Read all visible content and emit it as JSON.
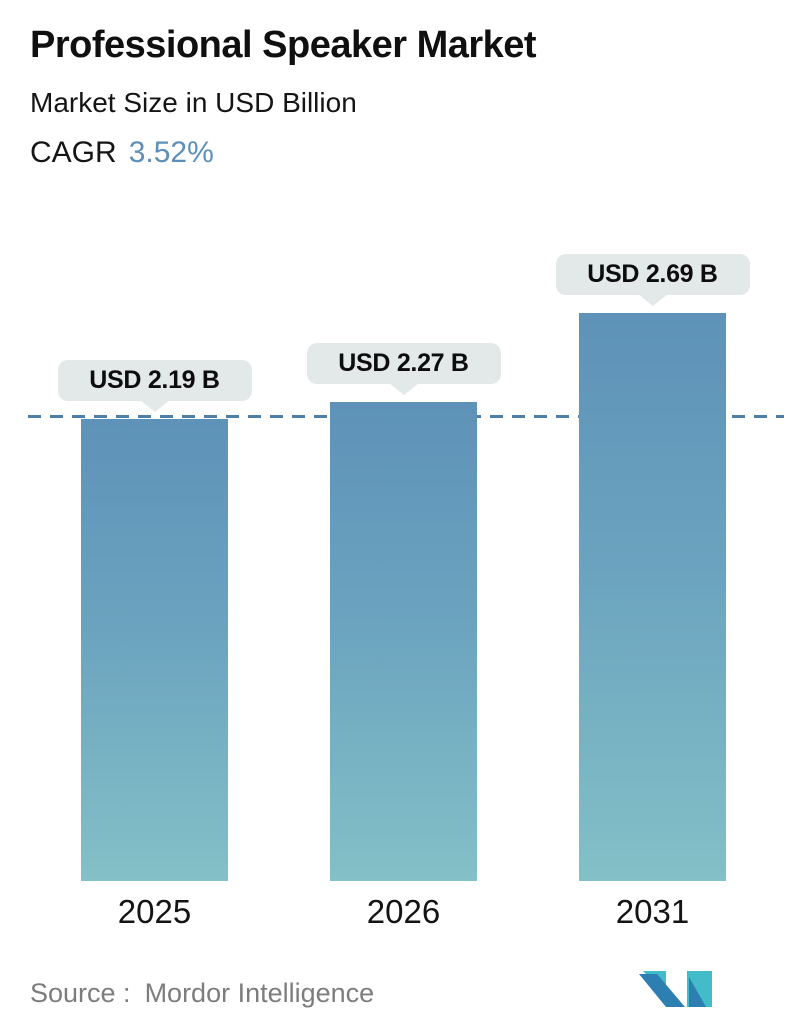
{
  "header": {
    "title": "Professional Speaker Market",
    "subtitle": "Market Size in USD Billion",
    "cagr_label": "CAGR",
    "cagr_value": "3.52%"
  },
  "chart_data": {
    "type": "bar",
    "title": "Professional Speaker Market",
    "subtitle": "Market Size in USD Billion",
    "unit": "USD Billion",
    "cagr_percent": 3.52,
    "categories": [
      "2025",
      "2026",
      "2031"
    ],
    "values": [
      2.19,
      2.27,
      2.69
    ],
    "labels": [
      "USD 2.19 B",
      "USD 2.27 B",
      "USD 2.69 B"
    ],
    "xlabel": "",
    "ylabel": "Market Size in USD Billion",
    "ylim": [
      0,
      3
    ],
    "grid": "off",
    "legend": "none",
    "reference_line": {
      "style": "dashed",
      "value": 2.19,
      "note": "horizontal dashed line at 2025 market size level"
    }
  },
  "footer": {
    "source_label": "Source :",
    "source_value": "Mordor Intelligence",
    "logo_name": "mordor-intelligence-logo"
  },
  "colors": {
    "background": "#ffffff",
    "title_text": "#101010",
    "cagr_accent": "#5e8fba",
    "bar_gradient_top": "#5e92b8",
    "bar_gradient_bottom": "#83c0c7",
    "dashed_line": "#4d7fa9",
    "tooltip_background": "#e3e9e9",
    "tooltip_text": "#0d0d0d",
    "source_text": "#7d7d7d",
    "logo_teal": "#41bcc8",
    "logo_blue": "#2d7fb2"
  }
}
